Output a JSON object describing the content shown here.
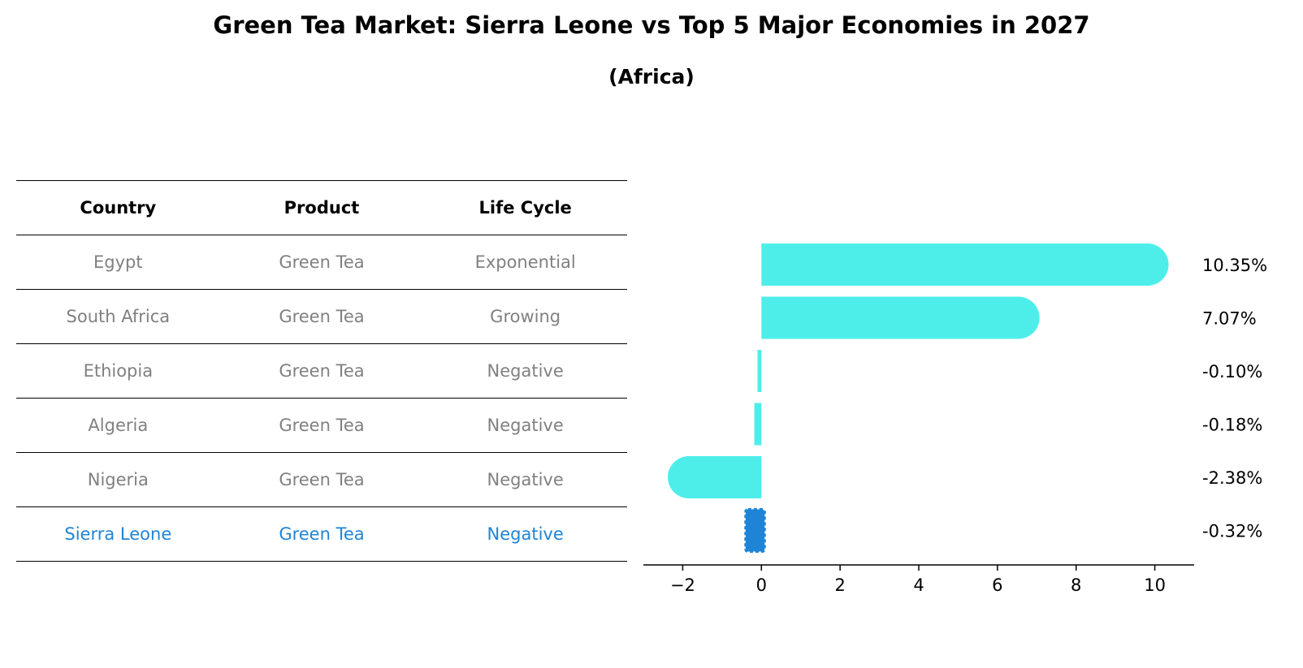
{
  "title": "Green Tea Market: Sierra Leone vs Top 5 Major Economies in 2027",
  "subtitle": "(Africa)",
  "table": {
    "headers": [
      "Country",
      "Product",
      "Life Cycle"
    ],
    "rows": [
      [
        "Egypt",
        "Green Tea",
        "Exponential"
      ],
      [
        "South Africa",
        "Green Tea",
        "Growing"
      ],
      [
        "Ethiopia",
        "Green Tea",
        "Negative"
      ],
      [
        "Algeria",
        "Green Tea",
        "Negative"
      ],
      [
        "Nigeria",
        "Green Tea",
        "Negative"
      ],
      [
        "Sierra Leone",
        "Green Tea",
        "Negative"
      ]
    ],
    "highlight_row": 5,
    "highlight_color": "#1f84d6",
    "text_color": "#808080"
  },
  "chart_data": {
    "type": "bar",
    "orientation": "horizontal",
    "categories": [
      "Egypt",
      "South Africa",
      "Ethiopia",
      "Algeria",
      "Nigeria",
      "Sierra Leone"
    ],
    "values": [
      10.35,
      7.07,
      -0.1,
      -0.18,
      -2.38,
      -0.32
    ],
    "value_labels": [
      "10.35%",
      "7.07%",
      "-0.10%",
      "-0.18%",
      "-2.38%",
      "-0.32%"
    ],
    "xlim": [
      -3,
      11
    ],
    "xticks": [
      -2,
      0,
      2,
      4,
      6,
      8,
      10
    ],
    "xtick_labels": [
      "−2",
      "0",
      "2",
      "4",
      "6",
      "8",
      "10"
    ],
    "bar_color": "#4deeea",
    "highlight_color": "#1f84d6",
    "highlight_index": 5,
    "grid": false
  }
}
